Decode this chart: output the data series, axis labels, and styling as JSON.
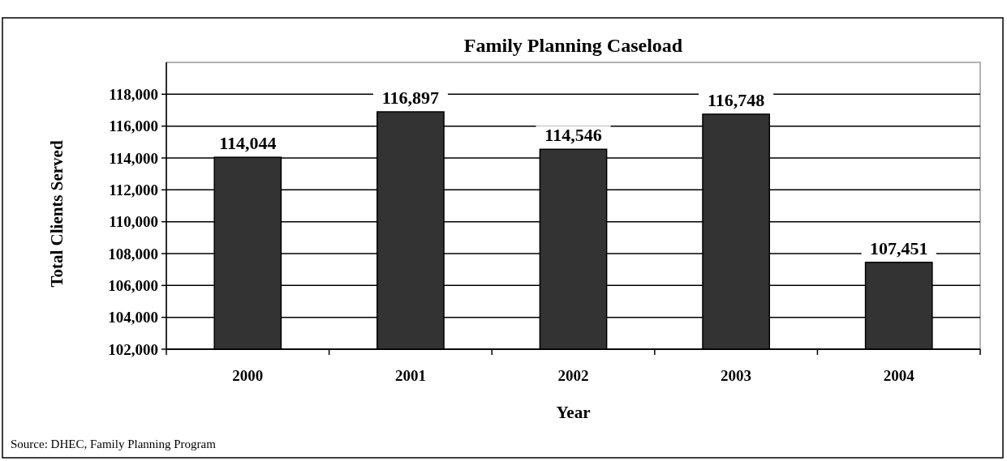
{
  "chart_data": {
    "type": "bar",
    "title": "Family Planning Caseload",
    "xlabel": "Year",
    "ylabel": "Total Clients Served",
    "categories": [
      "2000",
      "2001",
      "2002",
      "2003",
      "2004"
    ],
    "values": [
      114044,
      116897,
      114546,
      116748,
      107451
    ],
    "color": "#333333",
    "ylim": [
      102000,
      120000
    ],
    "yticks": [
      {
        "value": 102000,
        "label": "102,000"
      },
      {
        "value": 104000,
        "label": "104,000"
      },
      {
        "value": 106000,
        "label": "106,000"
      },
      {
        "value": 108000,
        "label": "108,000"
      },
      {
        "value": 110000,
        "label": "110,000"
      },
      {
        "value": 112000,
        "label": "112,000"
      },
      {
        "value": 114000,
        "label": "114,000"
      },
      {
        "value": 116000,
        "label": "116,000"
      },
      {
        "value": 118000,
        "label": "118,000"
      }
    ],
    "grid": "y",
    "value_labels": [
      "114,044",
      "116,897",
      "114,546",
      "116,748",
      "107,451"
    ],
    "annotations": [
      "Source: DHEC, Family Planning Program"
    ]
  }
}
